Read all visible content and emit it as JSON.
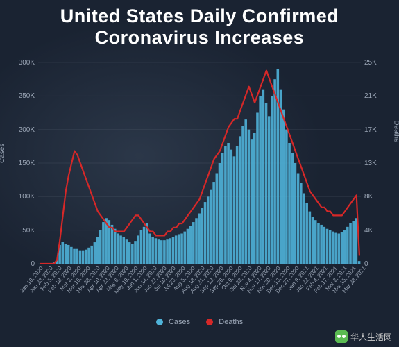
{
  "title_line1": "United States Daily Confirmed",
  "title_line2": "Coronavirus Increases",
  "chart": {
    "type": "bar+line",
    "background": "#1a2332",
    "bar_color": "#4fb3d9",
    "line_color": "#d62828",
    "grid_color": "rgba(150,160,175,0.12)",
    "tick_color": "#9aa5b5",
    "y_left": {
      "label": "Cases",
      "min": 0,
      "max": 300000,
      "ticks": [
        "300K",
        "250K",
        "200K",
        "150K",
        "100K",
        "50K",
        "0"
      ]
    },
    "y_right": {
      "label": "Deaths",
      "min": 0,
      "max": 25000,
      "ticks": [
        "25K",
        "21K",
        "17K",
        "13K",
        "8K",
        "4K",
        "0"
      ]
    },
    "x_labels": [
      "Jan 10, 2020",
      "Jan 23, 2020",
      "Feb 5, 2020",
      "Feb 18, 2020",
      "Mar 2, 2020",
      "Mar 15, 2020",
      "Mar 28, 2020",
      "Apr 10, 2020",
      "Apr 23, 2020",
      "May 6, 2020",
      "May 19, 2020",
      "Jun 1, 2020",
      "Jun 14, 2020",
      "Jun 27, 2020",
      "Jul 10, 2020",
      "Jul 23, 2020",
      "Aug 5, 2020",
      "Aug 18, 2020",
      "Aug 31, 2020",
      "Sep 13, 2020",
      "Sep 26, 2020",
      "Oct 9, 2020",
      "Oct 22, 2020",
      "Nov 4, 2020",
      "Nov 17, 2020",
      "Nov 30, 2020",
      "Dec 13, 2020",
      "Dec 27, 2020",
      "Jan 9, 2021",
      "Jan 22, 2021",
      "Feb 4, 2021",
      "Feb 17, 2021",
      "Mar 2, 2021",
      "Mar 15, 2021",
      "Mar 28, 2021"
    ],
    "cases": [
      0,
      0,
      0,
      0,
      1,
      2,
      5,
      28,
      33,
      30,
      28,
      25,
      22,
      22,
      20,
      20,
      21,
      24,
      27,
      32,
      40,
      50,
      62,
      68,
      65,
      58,
      52,
      45,
      42,
      40,
      36,
      32,
      30,
      34,
      42,
      50,
      55,
      60,
      45,
      40,
      38,
      36,
      35,
      35,
      36,
      38,
      40,
      42,
      44,
      45,
      48,
      52,
      56,
      62,
      68,
      75,
      83,
      92,
      100,
      110,
      122,
      135,
      150,
      165,
      175,
      180,
      170,
      160,
      175,
      190,
      205,
      215,
      200,
      185,
      195,
      225,
      250,
      260,
      240,
      220,
      250,
      275,
      290,
      260,
      230,
      200,
      180,
      165,
      150,
      135,
      120,
      105,
      90,
      78,
      70,
      65,
      60,
      58,
      55,
      52,
      50,
      48,
      46,
      45,
      47,
      50,
      55,
      60,
      64,
      68,
      4
    ],
    "deaths": [
      0,
      0,
      0,
      0,
      0,
      0,
      1,
      6,
      12,
      18,
      22,
      25,
      28,
      27,
      25,
      23,
      21,
      19,
      17,
      15,
      13,
      12,
      11,
      10,
      9,
      9,
      8,
      8,
      8,
      8,
      9,
      10,
      11,
      12,
      12,
      11,
      10,
      9,
      8,
      8,
      7,
      7,
      7,
      7,
      8,
      8,
      9,
      9,
      10,
      10,
      11,
      12,
      13,
      14,
      15,
      16,
      18,
      20,
      22,
      24,
      26,
      27,
      28,
      30,
      32,
      34,
      35,
      36,
      36,
      38,
      40,
      42,
      44,
      42,
      40,
      42,
      44,
      46,
      48,
      46,
      44,
      42,
      40,
      38,
      36,
      34,
      32,
      30,
      28,
      26,
      24,
      22,
      20,
      18,
      17,
      16,
      15,
      14,
      14,
      13,
      13,
      12,
      12,
      12,
      12,
      13,
      14,
      15,
      16,
      17,
      2
    ],
    "cases_scale_max": 300,
    "deaths_scale_max": 50,
    "legend": [
      {
        "label": "Cases",
        "color": "#4fb3d9"
      },
      {
        "label": "Deaths",
        "color": "#d62828"
      }
    ]
  },
  "watermark": "华人生活网"
}
